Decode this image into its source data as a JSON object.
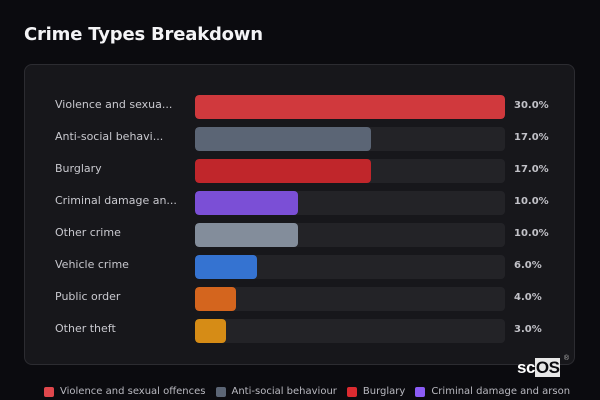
{
  "header": {
    "title": "Crime Types Breakdown"
  },
  "rows": [
    {
      "label": "Violence and sexua...",
      "pct": "30.0%",
      "value": 30.0,
      "color": "#d0393d"
    },
    {
      "label": "Anti-social behavi...",
      "pct": "17.0%",
      "value": 17.0,
      "color": "#5b6575"
    },
    {
      "label": "Burglary",
      "pct": "17.0%",
      "value": 17.0,
      "color": "#c0262b"
    },
    {
      "label": "Criminal damage an...",
      "pct": "10.0%",
      "value": 10.0,
      "color": "#7b4fd6"
    },
    {
      "label": "Other crime",
      "pct": "10.0%",
      "value": 10.0,
      "color": "#838d9b"
    },
    {
      "label": "Vehicle crime",
      "pct": "6.0%",
      "value": 6.0,
      "color": "#3573d1"
    },
    {
      "label": "Public order",
      "pct": "4.0%",
      "value": 4.0,
      "color": "#d4651e"
    },
    {
      "label": "Other theft",
      "pct": "3.0%",
      "value": 3.0,
      "color": "#d68c16"
    }
  ],
  "legend": [
    {
      "label": "Violence and sexual offences",
      "color": "#e0474c"
    },
    {
      "label": "Anti-social behaviour",
      "color": "#5b6575"
    },
    {
      "label": "Burglary",
      "color": "#dc2b30"
    },
    {
      "label": "Criminal damage and arson",
      "color": "#8b5cf6"
    }
  ],
  "brand": {
    "prefix": "sc",
    "highlight": "OS",
    "mark": "®"
  },
  "chart_data": {
    "type": "bar",
    "orientation": "horizontal",
    "title": "Crime Types Breakdown",
    "categories": [
      "Violence and sexual offences",
      "Anti-social behaviour",
      "Burglary",
      "Criminal damage and arson",
      "Other crime",
      "Vehicle crime",
      "Public order",
      "Other theft"
    ],
    "display_labels": [
      "Violence and sexua...",
      "Anti-social behavi...",
      "Burglary",
      "Criminal damage an...",
      "Other crime",
      "Vehicle crime",
      "Public order",
      "Other theft"
    ],
    "values": [
      30.0,
      17.0,
      17.0,
      10.0,
      10.0,
      6.0,
      4.0,
      3.0
    ],
    "value_labels": [
      "30.0%",
      "17.0%",
      "17.0%",
      "10.0%",
      "10.0%",
      "6.0%",
      "4.0%",
      "3.0%"
    ],
    "unit": "%",
    "xlim": [
      0,
      30
    ],
    "xlabel": "",
    "ylabel": "",
    "grid": false,
    "legend_position": "bottom",
    "legend": [
      "Violence and sexual offences",
      "Anti-social behaviour",
      "Burglary",
      "Criminal damage and arson"
    ]
  }
}
